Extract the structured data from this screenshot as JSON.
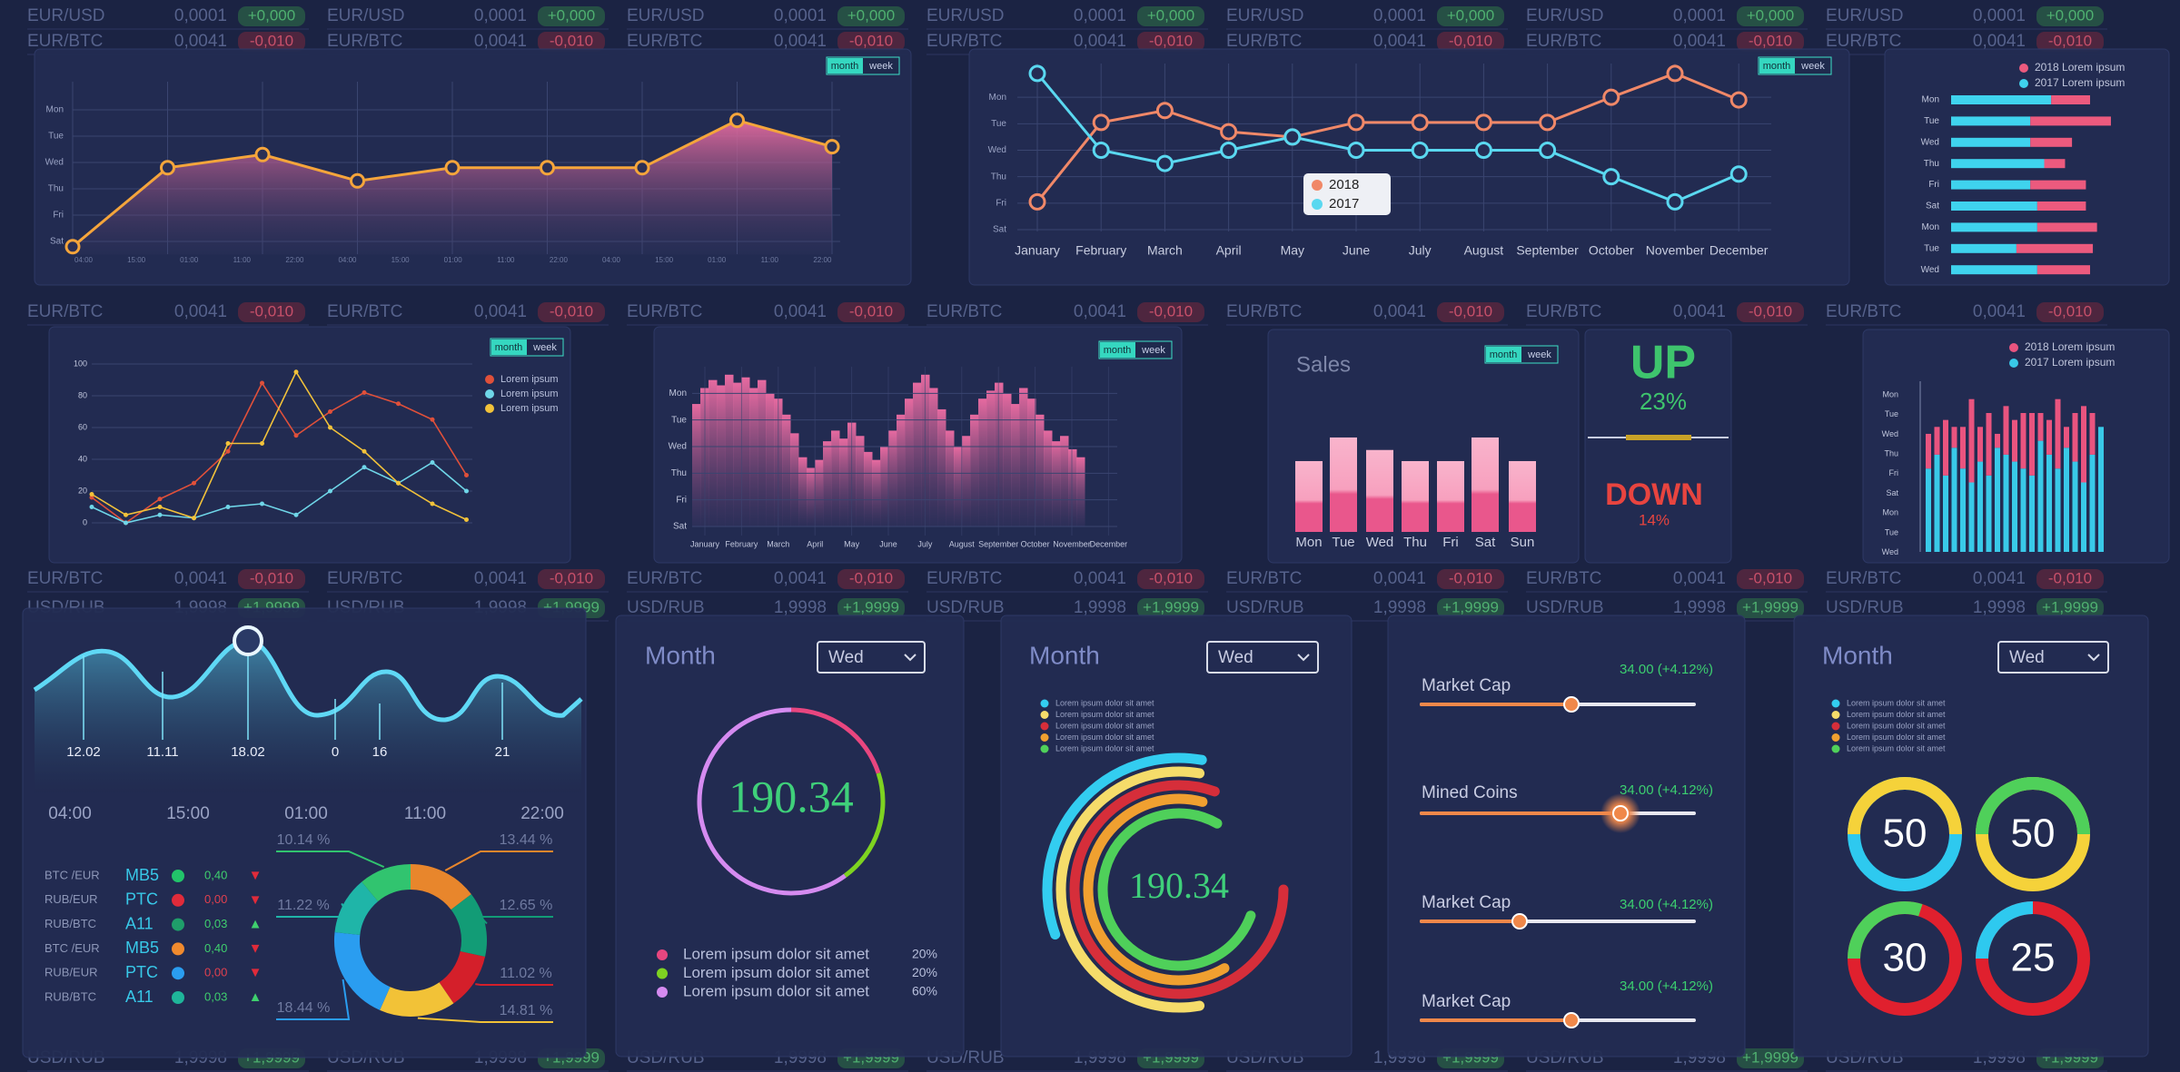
{
  "tickers": [
    {
      "pair": "EUR/USD",
      "price": "0,0001",
      "change": "+0,000",
      "pill": "#2b6446",
      "text": "#4fb070"
    },
    {
      "pair": "EUR/BTC",
      "price": "0,0041",
      "change": "-0,010",
      "pill": "#64283d",
      "text": "#c8506a"
    },
    {
      "pair": "USD/RUB",
      "price": "1,9998",
      "change": "+1,9999",
      "pill": "#2b6446",
      "text": "#4fb070"
    }
  ],
  "toggle": [
    "month",
    "week"
  ],
  "area_chart": {
    "type": "area",
    "color": "#f5a53b",
    "ylim": [
      -0.5,
      5.5
    ],
    "yticks": [
      {
        "value": 5,
        "label": "Mon"
      },
      {
        "value": 4,
        "label": "Tue"
      },
      {
        "value": 3,
        "label": "Wed"
      },
      {
        "value": 2,
        "label": "Thu"
      },
      {
        "value": 1,
        "label": "Fri"
      },
      {
        "value": 0,
        "label": "Sat"
      }
    ],
    "xlabels": [
      "04:00",
      "15:00",
      "01:00",
      "11:00",
      "22:00",
      "04:00",
      "15:00",
      "01:00",
      "11:00",
      "22:00",
      "04:00",
      "15:00",
      "01:00",
      "11:00",
      "22:00"
    ],
    "values": [
      -0.2,
      2.8,
      3.3,
      2.3,
      2.8,
      2.8,
      2.8,
      4.6,
      3.6
    ]
  },
  "month_line_chart": {
    "type": "line",
    "ylim": [
      0,
      6
    ],
    "yticks": [
      {
        "value": 5,
        "label": "Mon"
      },
      {
        "value": 4,
        "label": "Tue"
      },
      {
        "value": 3,
        "label": "Wed"
      },
      {
        "value": 2,
        "label": "Thu"
      },
      {
        "value": 1,
        "label": "Fri"
      },
      {
        "value": 0,
        "label": "Sat"
      }
    ],
    "categories": [
      "January",
      "February",
      "March",
      "April",
      "May",
      "June",
      "July",
      "August",
      "September",
      "October",
      "November",
      "December"
    ],
    "series": [
      {
        "name": "2018",
        "color": "#f08868",
        "values": [
          1.05,
          4.05,
          4.5,
          3.7,
          3.5,
          4.05,
          4.05,
          4.05,
          4.05,
          5.0,
          5.9,
          4.9
        ]
      },
      {
        "name": "2017",
        "color": "#5ad8f0",
        "values": [
          5.9,
          3.0,
          2.5,
          3.0,
          3.5,
          3.0,
          3.0,
          3.0,
          3.0,
          2.0,
          1.05,
          2.1
        ]
      }
    ]
  },
  "hbar_chart": {
    "type": "hbar",
    "categories": [
      "Mon",
      "Tue",
      "Wed",
      "Thu",
      "Fri",
      "Sat",
      "Mon",
      "Tue",
      "Wed"
    ],
    "series": [
      {
        "name": "2018 Lorem ipsum",
        "color": "#ec5a7e",
        "values": [
          28,
          58,
          30,
          15,
          40,
          35,
          43,
          55,
          38
        ]
      },
      {
        "name": "2017 Lorem ipsum",
        "color": "#3fd3ee",
        "values": [
          72,
          57,
          57,
          67,
          57,
          62,
          62,
          47,
          62
        ]
      }
    ]
  },
  "multi_line_chart": {
    "type": "line",
    "ylim": [
      0,
      100
    ],
    "yticks": [
      0,
      20,
      40,
      60,
      80,
      100
    ],
    "series": [
      {
        "name": "Lorem ipsum",
        "color": "#e0503a",
        "values": [
          16,
          0,
          15,
          25,
          45,
          88,
          55,
          70,
          82,
          75,
          65,
          30
        ]
      },
      {
        "name": "Lorem ipsum",
        "color": "#6fd6e8",
        "values": [
          10,
          0,
          5,
          3,
          10,
          12,
          5,
          20,
          35,
          25,
          38,
          20
        ]
      },
      {
        "name": "Lorem ipsum",
        "color": "#f2c23a",
        "values": [
          18,
          5,
          10,
          3,
          50,
          50,
          95,
          60,
          45,
          25,
          12,
          2
        ]
      }
    ]
  },
  "histogram_chart": {
    "type": "bar",
    "color": "#e46a9c",
    "ylim": [
      0,
      6
    ],
    "yticks": [
      {
        "value": 5,
        "label": "Mon"
      },
      {
        "value": 4,
        "label": "Tue"
      },
      {
        "value": 3,
        "label": "Wed"
      },
      {
        "value": 2,
        "label": "Thu"
      },
      {
        "value": 1,
        "label": "Fri"
      },
      {
        "value": 0,
        "label": "Sat"
      }
    ],
    "xlabels": [
      "January",
      "February",
      "March",
      "April",
      "May",
      "June",
      "July",
      "August",
      "September",
      "October",
      "November",
      "December"
    ],
    "values": [
      4.6,
      5.2,
      5.5,
      5.3,
      5.7,
      5.4,
      5.6,
      5.2,
      5.5,
      5.0,
      4.8,
      4.2,
      3.5,
      2.6,
      2.2,
      2.5,
      3.2,
      3.6,
      3.3,
      3.9,
      3.4,
      2.8,
      2.5,
      3.0,
      3.6,
      4.2,
      4.8,
      5.4,
      5.7,
      5.2,
      4.4,
      3.6,
      3.0,
      3.4,
      4.2,
      4.8,
      5.1,
      5.4,
      5.0,
      4.6,
      5.2,
      4.8,
      4.2,
      3.6,
      3.2,
      3.4,
      2.9,
      2.6
    ]
  },
  "sales_chart": {
    "type": "bar",
    "title": "Sales",
    "categories": [
      "Mon",
      "Tue",
      "Wed",
      "Thu",
      "Fri",
      "Sat",
      "Sun"
    ],
    "values": [
      51,
      68,
      59,
      51,
      51,
      68,
      51
    ]
  },
  "trend": {
    "up": "UP",
    "up_value": "23%",
    "down": "DOWN",
    "down_value": "14%"
  },
  "stacked_bar_chart": {
    "type": "stacked_bar",
    "ylabels": [
      "Mon",
      "Tue",
      "Wed",
      "Thu",
      "Fri",
      "Sat",
      "Mon",
      "Tue",
      "Wed"
    ],
    "series": [
      {
        "name": "2018 Lorem ipsum",
        "color": "#e9547f",
        "values": [
          25,
          20,
          40,
          15,
          30,
          60,
          25,
          45,
          10,
          35,
          30,
          40,
          45,
          20,
          25,
          50,
          15,
          35,
          55,
          30,
          0
        ]
      },
      {
        "name": "2017 Lorem ipsum",
        "color": "#39c9e8",
        "values": [
          60,
          70,
          55,
          75,
          60,
          50,
          65,
          55,
          75,
          70,
          65,
          60,
          55,
          80,
          70,
          60,
          75,
          65,
          50,
          70,
          90
        ]
      }
    ]
  },
  "wave": {
    "labels": [
      "12.02",
      "11.11",
      "18.02",
      "0",
      "16",
      "21"
    ],
    "times": [
      "04:00",
      "15:00",
      "01:00",
      "11:00",
      "22:00"
    ]
  },
  "trades": [
    {
      "pair": "BTC /EUR",
      "code": "MB5",
      "dot": "#22c46a",
      "value": "0,40",
      "value_color": "#3fcf6e",
      "arrow": "▼",
      "arrow_color": "#e02b3a"
    },
    {
      "pair": "RUB/EUR",
      "code": "PTC",
      "dot": "#e02b3a",
      "value": "0,00",
      "value_color": "#e0404f",
      "arrow": "▼",
      "arrow_color": "#e02b3a"
    },
    {
      "pair": "RUB/BTC",
      "code": "A11",
      "dot": "#1f9e6a",
      "value": "0,03",
      "value_color": "#3fcf6e",
      "arrow": "▲",
      "arrow_color": "#3fcf6e"
    },
    {
      "pair": "BTC /EUR",
      "code": "MB5",
      "dot": "#f08a2e",
      "value": "0,40",
      "value_color": "#3fcf6e",
      "arrow": "▼",
      "arrow_color": "#e02b3a"
    },
    {
      "pair": "RUB/EUR",
      "code": "PTC",
      "dot": "#2a9df0",
      "value": "0,00",
      "value_color": "#e0404f",
      "arrow": "▼",
      "arrow_color": "#e02b3a"
    },
    {
      "pair": "RUB/BTC",
      "code": "A11",
      "dot": "#1fb59a",
      "value": "0,03",
      "value_color": "#3fcf6e",
      "arrow": "▲",
      "arrow_color": "#3fcf6e"
    }
  ],
  "donut": {
    "type": "donut",
    "values": [
      13.44,
      12.65,
      11.02,
      14.81,
      18.44,
      11.22,
      10.14
    ],
    "value_labels": [
      "13.44 %",
      "12.65 %",
      "11.02 %",
      "14.81 %",
      "18.44 %",
      "11.22 %",
      "10.14 %"
    ],
    "colors": [
      "#e8862c",
      "#129c76",
      "#d41f2a",
      "#f2c237",
      "#2a9df0",
      "#1fb5a8",
      "#31c46f"
    ]
  },
  "gauge_panel": {
    "type": "ring",
    "title": "Month",
    "dropdown": "Wed",
    "center": "190.34",
    "items": [
      {
        "label": "Lorem ipsum dolor sit amet",
        "value": 20,
        "value_label": "20%",
        "color": "#e8467f"
      },
      {
        "label": "Lorem ipsum dolor sit amet",
        "value": 20,
        "value_label": "20%",
        "color": "#7ed321"
      },
      {
        "label": "Lorem ipsum dolor sit amet",
        "value": 60,
        "value_label": "60%",
        "color": "#d58bf0"
      }
    ]
  },
  "arcs_panel": {
    "title": "Month",
    "dropdown": "Wed",
    "center": "190.34",
    "legend": [
      {
        "label": "Lorem ipsum dolor sit amet",
        "color": "#33cdf0"
      },
      {
        "label": "Lorem ipsum dolor sit amet",
        "color": "#f5dc6a"
      },
      {
        "label": "Lorem ipsum dolor sit amet",
        "color": "#d62e3a"
      },
      {
        "label": "Lorem ipsum dolor sit amet",
        "color": "#f0a030"
      },
      {
        "label": "Lorem ipsum dolor sit amet",
        "color": "#4fd05a"
      }
    ]
  },
  "sliders": {
    "range": [
      0,
      100
    ],
    "items": [
      {
        "label": "Market Cap",
        "value_label": "34.00 (+4.12%)",
        "position": 55
      },
      {
        "label": "Mined Coins",
        "value_label": "34.00 (+4.12%)",
        "position": 73
      },
      {
        "label": "Market Cap",
        "value_label": "34.00 (+4.12%)",
        "position": 36
      },
      {
        "label": "Market Cap",
        "value_label": "34.00 (+4.12%)",
        "position": 55
      }
    ]
  },
  "rings_panel": {
    "title": "Month",
    "dropdown": "Wed",
    "legend": [
      {
        "label": "Lorem ipsum dolor sit amet",
        "color": "#33cdf0"
      },
      {
        "label": "Lorem ipsum dolor sit amet",
        "color": "#f5dc6a"
      },
      {
        "label": "Lorem ipsum dolor sit amet",
        "color": "#d62e3a"
      },
      {
        "label": "Lorem ipsum dolor sit amet",
        "color": "#f0a030"
      },
      {
        "label": "Lorem ipsum dolor sit amet",
        "color": "#4fd05a"
      }
    ],
    "rings": [
      {
        "value": 50,
        "colors": [
          "#f5d23a",
          "#2ec9ef"
        ]
      },
      {
        "value": 50,
        "colors": [
          "#4fd05a",
          "#f5d23a"
        ]
      },
      {
        "value": 30,
        "colors": [
          "#4fd05a",
          "#e0202e"
        ]
      },
      {
        "value": 25,
        "colors": [
          "#2ec9ef",
          "#e0202e"
        ]
      }
    ]
  }
}
